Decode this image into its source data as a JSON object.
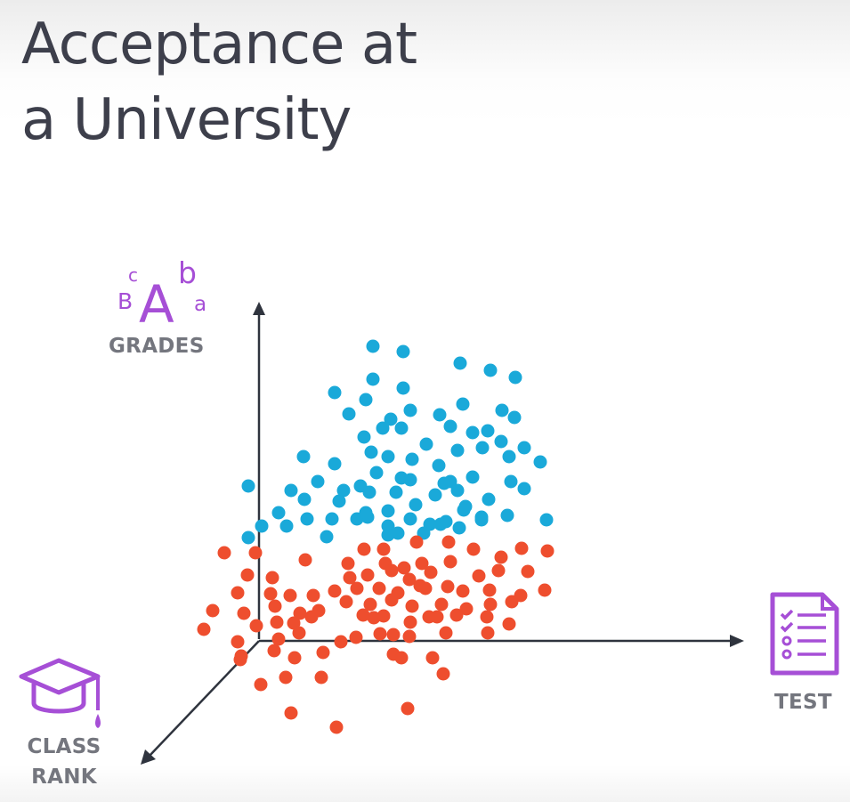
{
  "title": {
    "line1": "Acceptance at",
    "line2": "a University"
  },
  "axes": {
    "vertical": {
      "label": "GRADES",
      "icon": "grades-letters-icon",
      "icon_letters": [
        "B",
        "c",
        "A",
        "b",
        "a"
      ]
    },
    "horizontal": {
      "label": "TEST",
      "icon": "test-checklist-icon"
    },
    "depth": {
      "label_line1": "CLASS",
      "label_line2": "RANK",
      "icon": "graduation-cap-icon"
    }
  },
  "colors": {
    "accepted": "#1aa9d9",
    "rejected": "#ee4e2e",
    "axis": "#2f343e",
    "icon": "#a64fd6",
    "title": "#3d3f4b",
    "label": "#74767e"
  },
  "chart_data": {
    "type": "scatter",
    "title": "Acceptance at a University",
    "xlabel": "TEST",
    "ylabel": "GRADES",
    "zlabel": "CLASS RANK",
    "grid": false,
    "series": [
      {
        "color": "#1aa9d9",
        "points": [
          [
            419,
            389
          ],
          [
            453,
            395
          ],
          [
            517,
            408
          ],
          [
            551,
            416
          ],
          [
            579,
            424
          ],
          [
            376,
            441
          ],
          [
            419,
            426
          ],
          [
            453,
            436
          ],
          [
            411,
            449
          ],
          [
            392,
            465
          ],
          [
            439,
            471
          ],
          [
            461,
            461
          ],
          [
            494,
            466
          ],
          [
            520,
            454
          ],
          [
            564,
            461
          ],
          [
            578,
            469
          ],
          [
            451,
            481
          ],
          [
            430,
            481
          ],
          [
            409,
            491
          ],
          [
            479,
            499
          ],
          [
            506,
            479
          ],
          [
            531,
            486
          ],
          [
            548,
            484
          ],
          [
            563,
            496
          ],
          [
            589,
            503
          ],
          [
            417,
            508
          ],
          [
            436,
            513
          ],
          [
            341,
            513
          ],
          [
            376,
            521
          ],
          [
            463,
            516
          ],
          [
            493,
            523
          ],
          [
            514,
            506
          ],
          [
            542,
            503
          ],
          [
            572,
            513
          ],
          [
            607,
            519
          ],
          [
            357,
            541
          ],
          [
            386,
            551
          ],
          [
            405,
            546
          ],
          [
            423,
            531
          ],
          [
            451,
            537
          ],
          [
            461,
            539
          ],
          [
            499,
            543
          ],
          [
            514,
            551
          ],
          [
            531,
            536
          ],
          [
            574,
            541
          ],
          [
            589,
            549
          ],
          [
            279,
            546
          ],
          [
            327,
            551
          ],
          [
            342,
            561
          ],
          [
            381,
            563
          ],
          [
            415,
            553
          ],
          [
            445,
            553
          ],
          [
            489,
            556
          ],
          [
            523,
            569
          ],
          [
            549,
            561
          ],
          [
            313,
            576
          ],
          [
            345,
            583
          ],
          [
            373,
            583
          ],
          [
            401,
            583
          ],
          [
            436,
            574
          ],
          [
            467,
            567
          ],
          [
            461,
            583
          ],
          [
            483,
            589
          ],
          [
            501,
            586
          ],
          [
            521,
            573
          ],
          [
            541,
            581
          ],
          [
            570,
            579
          ],
          [
            614,
            584
          ],
          [
            294,
            591
          ],
          [
            322,
            591
          ],
          [
            436,
            591
          ],
          [
            413,
            581
          ],
          [
            476,
            599
          ],
          [
            447,
            599
          ],
          [
            367,
            603
          ],
          [
            495,
            589
          ],
          [
            516,
            593
          ],
          [
            279,
            604
          ],
          [
            436,
            601
          ],
          [
            541,
            584
          ],
          [
            411,
            576
          ],
          [
            506,
            541
          ]
        ]
      },
      {
        "color": "#ee4e2e",
        "points": [
          [
            252,
            621
          ],
          [
            287,
            621
          ],
          [
            343,
            629
          ],
          [
            409,
            617
          ],
          [
            431,
            617
          ],
          [
            468,
            609
          ],
          [
            504,
            609
          ],
          [
            532,
            617
          ],
          [
            586,
            616
          ],
          [
            615,
            619
          ],
          [
            391,
            633
          ],
          [
            433,
            633
          ],
          [
            454,
            638
          ],
          [
            474,
            633
          ],
          [
            506,
            631
          ],
          [
            563,
            626
          ],
          [
            278,
            646
          ],
          [
            306,
            649
          ],
          [
            393,
            649
          ],
          [
            413,
            646
          ],
          [
            440,
            641
          ],
          [
            460,
            651
          ],
          [
            484,
            643
          ],
          [
            538,
            647
          ],
          [
            560,
            641
          ],
          [
            593,
            642
          ],
          [
            267,
            666
          ],
          [
            304,
            667
          ],
          [
            326,
            669
          ],
          [
            352,
            669
          ],
          [
            376,
            664
          ],
          [
            401,
            661
          ],
          [
            426,
            661
          ],
          [
            447,
            666
          ],
          [
            472,
            658
          ],
          [
            503,
            659
          ],
          [
            520,
            664
          ],
          [
            550,
            663
          ],
          [
            585,
            669
          ],
          [
            612,
            663
          ],
          [
            239,
            686
          ],
          [
            274,
            689
          ],
          [
            309,
            681
          ],
          [
            337,
            689
          ],
          [
            358,
            686
          ],
          [
            389,
            676
          ],
          [
            416,
            679
          ],
          [
            440,
            674
          ],
          [
            463,
            681
          ],
          [
            496,
            679
          ],
          [
            524,
            684
          ],
          [
            551,
            679
          ],
          [
            575,
            676
          ],
          [
            229,
            707
          ],
          [
            288,
            703
          ],
          [
            311,
            699
          ],
          [
            350,
            693
          ],
          [
            408,
            691
          ],
          [
            431,
            692
          ],
          [
            461,
            699
          ],
          [
            491,
            693
          ],
          [
            513,
            691
          ],
          [
            547,
            693
          ],
          [
            572,
            701
          ],
          [
            267,
            721
          ],
          [
            313,
            718
          ],
          [
            336,
            711
          ],
          [
            383,
            721
          ],
          [
            400,
            716
          ],
          [
            427,
            712
          ],
          [
            460,
            715
          ],
          [
            501,
            711
          ],
          [
            548,
            711
          ],
          [
            271,
            737
          ],
          [
            308,
            731
          ],
          [
            331,
            739
          ],
          [
            363,
            733
          ],
          [
            442,
            735
          ],
          [
            451,
            739
          ],
          [
            486,
            739
          ],
          [
            293,
            769
          ],
          [
            321,
            761
          ],
          [
            361,
            761
          ],
          [
            498,
            757
          ],
          [
            327,
            801
          ],
          [
            458,
            796
          ],
          [
            378,
            817
          ],
          [
            270,
            741
          ],
          [
            330,
            700
          ],
          [
            420,
            694
          ],
          [
            442,
            713
          ],
          [
            478,
            661
          ],
          [
            482,
            693
          ]
        ]
      }
    ]
  }
}
